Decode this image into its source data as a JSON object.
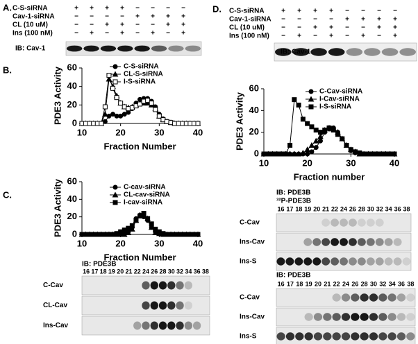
{
  "panel_a": {
    "label": "A.",
    "blot_label": "IB: Cav-1",
    "rows": [
      {
        "name": "C-S-siRNA",
        "signs": [
          "+",
          "+",
          "+",
          "+",
          "−",
          "−",
          "−",
          "−"
        ]
      },
      {
        "name": "Cav-1-siRNA",
        "signs": [
          "−",
          "−",
          "−",
          "−",
          "+",
          "+",
          "+",
          "+"
        ]
      },
      {
        "name": "CL (10 uM)",
        "signs": [
          "−",
          "−",
          "+",
          "+",
          "−",
          "−",
          "+",
          "+"
        ]
      },
      {
        "name": "Ins (100 nM)",
        "signs": [
          "−",
          "+",
          "−",
          "+",
          "−",
          "+",
          "−",
          "+"
        ]
      }
    ]
  },
  "panel_d": {
    "label": "D.",
    "blot_label": "IB: Cav-1",
    "rows": [
      {
        "name": "C-S-siRNA",
        "signs": [
          "+",
          "+",
          "+",
          "+",
          "−",
          "−",
          "−",
          "−"
        ]
      },
      {
        "name": "Cav-1-siRNA",
        "signs": [
          "−",
          "−",
          "−",
          "−",
          "+",
          "+",
          "+",
          "+"
        ]
      },
      {
        "name": "CL (10 uM)",
        "signs": [
          "−",
          "−",
          "+",
          "+",
          "−",
          "−",
          "+",
          "+"
        ]
      },
      {
        "name": "Ins (100 nM)",
        "signs": [
          "−",
          "+",
          "−",
          "+",
          "−",
          "+",
          "−",
          "+"
        ]
      }
    ]
  },
  "chart_data": [
    {
      "type": "line",
      "panel_label": "B.",
      "xlabel": "Fraction Number",
      "ylabel": "PDE3 Activity",
      "xlim": [
        10,
        40
      ],
      "xticks": [
        10,
        20,
        30,
        40
      ],
      "ylim": [
        0,
        60
      ],
      "yticks": [
        0,
        20,
        40,
        60
      ],
      "x": [
        10,
        11,
        12,
        13,
        14,
        15,
        16,
        17,
        18,
        19,
        20,
        21,
        22,
        23,
        24,
        25,
        26,
        27,
        28,
        29,
        30,
        31,
        32,
        33,
        34,
        35,
        36,
        37,
        38,
        39,
        40
      ],
      "series": [
        {
          "name": "C-S-siRNA",
          "marker": "circle",
          "color": "#000000",
          "values": [
            0,
            0,
            0,
            0,
            0,
            0,
            2,
            8,
            10,
            8,
            8,
            10,
            12,
            16,
            22,
            26,
            27,
            27,
            24,
            18,
            10,
            5,
            2,
            1,
            0,
            0,
            0,
            0,
            0,
            0,
            0
          ]
        },
        {
          "name": "CL-S-siRNA",
          "marker": "triangle",
          "color": "#000000",
          "values": [
            0,
            0,
            0,
            0,
            0,
            0,
            10,
            48,
            40,
            30,
            22,
            18,
            17,
            18,
            20,
            22,
            22,
            22,
            20,
            16,
            8,
            4,
            2,
            1,
            0,
            0,
            0,
            0,
            0,
            0,
            0
          ]
        },
        {
          "name": "I-S-siRNA",
          "marker": "square-open",
          "color": "#000000",
          "values": [
            0,
            0,
            0,
            0,
            0,
            0,
            18,
            52,
            38,
            28,
            22,
            18,
            16,
            17,
            19,
            21,
            24,
            25,
            22,
            15,
            8,
            4,
            2,
            1,
            0,
            0,
            0,
            0,
            0,
            0,
            0
          ]
        }
      ]
    },
    {
      "type": "line",
      "panel_label": "C.",
      "xlabel": "Fraction Number",
      "ylabel": "PDE3 Activity",
      "xlim": [
        10,
        40
      ],
      "xticks": [
        10,
        20,
        30,
        40
      ],
      "ylim": [
        0,
        60
      ],
      "yticks": [
        0,
        20,
        40,
        60
      ],
      "x": [
        10,
        11,
        12,
        13,
        14,
        15,
        16,
        17,
        18,
        19,
        20,
        21,
        22,
        23,
        24,
        25,
        26,
        27,
        28,
        29,
        30,
        31,
        32,
        33,
        34,
        35,
        36,
        37,
        38,
        39,
        40
      ],
      "series": [
        {
          "name": "C-cav-siRNA",
          "marker": "circle",
          "color": "#000000",
          "values": [
            0,
            0,
            0,
            0,
            0,
            0,
            0,
            0,
            0,
            0,
            0,
            1,
            3,
            8,
            18,
            22,
            20,
            16,
            8,
            3,
            1,
            0,
            0,
            0,
            0,
            0,
            0,
            0,
            0,
            0,
            0
          ]
        },
        {
          "name": "CL-cav-siRNA",
          "marker": "triangle",
          "color": "#000000",
          "values": [
            0,
            0,
            0,
            0,
            0,
            0,
            0,
            0,
            0,
            0,
            0,
            0,
            2,
            6,
            16,
            22,
            23,
            18,
            8,
            2,
            1,
            0,
            0,
            0,
            0,
            0,
            0,
            0,
            0,
            0,
            0
          ]
        },
        {
          "name": "I-cav-siRNA",
          "marker": "square",
          "color": "#000000",
          "values": [
            0,
            0,
            0,
            0,
            0,
            0,
            0,
            0,
            0,
            1,
            3,
            5,
            7,
            10,
            16,
            21,
            24,
            18,
            12,
            6,
            3,
            1,
            0,
            0,
            0,
            0,
            0,
            0,
            0,
            0,
            0
          ]
        }
      ]
    },
    {
      "type": "line",
      "panel_label": "D.",
      "xlabel": "Fraction number",
      "ylabel": "PDE3 Activity",
      "xlim": [
        10,
        40
      ],
      "xticks": [
        10,
        20,
        30,
        40
      ],
      "ylim": [
        0,
        60
      ],
      "yticks": [
        0,
        20,
        40,
        60
      ],
      "x": [
        10,
        11,
        12,
        13,
        14,
        15,
        16,
        17,
        18,
        19,
        20,
        21,
        22,
        23,
        24,
        25,
        26,
        27,
        28,
        29,
        30,
        31,
        32,
        33,
        34,
        35,
        36,
        37,
        38,
        39,
        40
      ],
      "series": [
        {
          "name": "C-Cav-siRNA",
          "marker": "circle",
          "color": "#000000",
          "values": [
            0,
            0,
            0,
            0,
            0,
            0,
            0,
            0,
            0,
            0,
            0,
            2,
            6,
            12,
            20,
            23,
            24,
            20,
            14,
            8,
            3,
            1,
            0,
            0,
            0,
            0,
            0,
            0,
            0,
            0,
            0
          ]
        },
        {
          "name": "I-Cav-siRNA",
          "marker": "triangle",
          "color": "#000000",
          "values": [
            0,
            0,
            0,
            0,
            0,
            0,
            0,
            0,
            0,
            1,
            4,
            8,
            12,
            16,
            22,
            24,
            23,
            20,
            14,
            8,
            4,
            2,
            0,
            0,
            0,
            0,
            0,
            0,
            0,
            0,
            0
          ]
        },
        {
          "name": "I-S-siRNA",
          "marker": "square",
          "color": "#000000",
          "values": [
            0,
            0,
            0,
            0,
            0,
            0,
            8,
            50,
            45,
            32,
            28,
            25,
            22,
            20,
            22,
            24,
            22,
            18,
            14,
            8,
            4,
            2,
            1,
            0,
            0,
            0,
            0,
            0,
            0,
            0,
            0
          ]
        }
      ]
    }
  ],
  "blots": [
    {
      "title": "IB: PDE3B",
      "fractions": [
        16,
        17,
        18,
        19,
        20,
        21,
        22,
        24,
        26,
        28,
        30,
        32,
        34,
        36,
        38
      ],
      "rows": [
        "C-Cav",
        "CL-Cav",
        "Ins-Cav"
      ]
    },
    {
      "title": "IB: PDE3B",
      "subtitle": "³²P-PDE3B",
      "fractions": [
        16,
        17,
        18,
        19,
        20,
        21,
        22,
        24,
        26,
        28,
        30,
        32,
        34,
        36,
        38
      ],
      "rows": [
        "C-Cav",
        "Ins-Cav",
        "Ins-S"
      ]
    },
    {
      "title": "IB: PDE3B",
      "fractions": [
        16,
        17,
        18,
        19,
        20,
        21,
        22,
        24,
        26,
        28,
        30,
        32,
        34,
        36,
        38
      ],
      "rows": [
        "C-Cav",
        "Ins-Cav",
        "Ins-S"
      ]
    }
  ]
}
